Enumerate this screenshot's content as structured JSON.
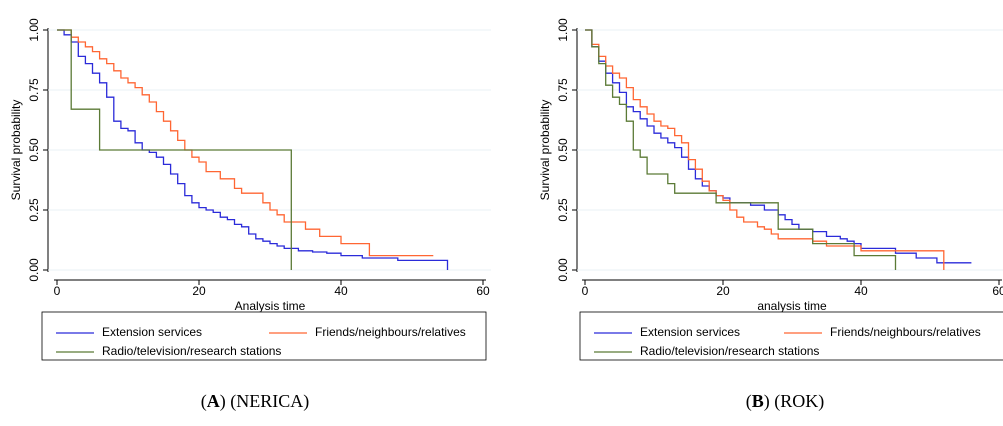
{
  "chart_data": [
    {
      "type": "line",
      "step": true,
      "grid": true,
      "xlabel": "Analysis time",
      "ylabel": "Survival probability",
      "xlim": [
        0,
        60
      ],
      "ylim": [
        0,
        1
      ],
      "xticks": [
        0,
        20,
        40,
        60
      ],
      "yticks": [
        {
          "value": 0,
          "label": "0.00"
        },
        {
          "value": 0.25,
          "label": "0.25"
        },
        {
          "value": 0.5,
          "label": "0.50"
        },
        {
          "value": 0.75,
          "label": "0.75"
        },
        {
          "value": 1,
          "label": "1.00"
        }
      ],
      "series": [
        {
          "name": "Extension services",
          "color": "#2b2bd9",
          "x": [
            0,
            1,
            2,
            3,
            4,
            5,
            6,
            7,
            8,
            9,
            10,
            11,
            12,
            13,
            14,
            15,
            16,
            17,
            18,
            19,
            20,
            21,
            22,
            23,
            24,
            25,
            26,
            27,
            28,
            29,
            30,
            31,
            32,
            34,
            36,
            38,
            40,
            43,
            48,
            55
          ],
          "values": [
            1,
            0.98,
            0.95,
            0.89,
            0.86,
            0.82,
            0.78,
            0.72,
            0.62,
            0.59,
            0.58,
            0.53,
            0.5,
            0.49,
            0.47,
            0.44,
            0.4,
            0.36,
            0.31,
            0.28,
            0.26,
            0.25,
            0.24,
            0.22,
            0.21,
            0.19,
            0.18,
            0.15,
            0.13,
            0.12,
            0.11,
            0.1,
            0.09,
            0.08,
            0.075,
            0.07,
            0.06,
            0.05,
            0.04,
            0
          ]
        },
        {
          "name": "Friends/neighbours/relatives",
          "color": "#ff6633",
          "x": [
            0,
            2,
            3,
            4,
            5,
            6,
            7,
            8,
            9,
            10,
            11,
            12,
            13,
            14,
            15,
            16,
            17,
            18,
            19,
            20,
            21,
            23,
            25,
            26,
            29,
            30,
            31,
            32,
            35,
            37,
            40,
            44,
            53
          ],
          "values": [
            1,
            0.97,
            0.95,
            0.93,
            0.91,
            0.88,
            0.86,
            0.83,
            0.8,
            0.78,
            0.76,
            0.73,
            0.7,
            0.66,
            0.62,
            0.58,
            0.54,
            0.5,
            0.47,
            0.45,
            0.41,
            0.38,
            0.34,
            0.32,
            0.28,
            0.25,
            0.23,
            0.2,
            0.17,
            0.14,
            0.11,
            0.06,
            0.06
          ]
        },
        {
          "name": "Radio/television/research stations",
          "color": "#5b7a36",
          "x": [
            0,
            2,
            6,
            33
          ],
          "values": [
            1,
            0.67,
            0.5,
            0
          ]
        }
      ],
      "caption": [
        "(",
        "A",
        ") (NERICA)"
      ]
    },
    {
      "type": "line",
      "step": true,
      "grid": true,
      "xlabel": "analysis time",
      "ylabel": "Survival probability",
      "xlim": [
        0,
        60
      ],
      "ylim": [
        0,
        1
      ],
      "xticks": [
        0,
        20,
        40,
        60
      ],
      "yticks": [
        {
          "value": 0,
          "label": "0.00"
        },
        {
          "value": 0.25,
          "label": "0.25"
        },
        {
          "value": 0.5,
          "label": "0.50"
        },
        {
          "value": 0.75,
          "label": "0.75"
        },
        {
          "value": 1,
          "label": "1.00"
        }
      ],
      "series": [
        {
          "name": "Extension services",
          "color": "#2b2bd9",
          "x": [
            0,
            1,
            2,
            3,
            4,
            5,
            6,
            7,
            8,
            9,
            10,
            11,
            12,
            13,
            14,
            15,
            16,
            17,
            18,
            19,
            20,
            21,
            24,
            26,
            28,
            29,
            30,
            31,
            33,
            35,
            37,
            38,
            39,
            40,
            45,
            48,
            51,
            56
          ],
          "values": [
            1,
            0.93,
            0.87,
            0.82,
            0.78,
            0.74,
            0.68,
            0.66,
            0.63,
            0.6,
            0.57,
            0.55,
            0.53,
            0.51,
            0.47,
            0.42,
            0.38,
            0.35,
            0.33,
            0.31,
            0.3,
            0.28,
            0.27,
            0.25,
            0.23,
            0.21,
            0.19,
            0.17,
            0.16,
            0.14,
            0.13,
            0.12,
            0.11,
            0.09,
            0.07,
            0.05,
            0.03,
            0.03
          ]
        },
        {
          "name": "Friends/neighbours/relatives",
          "color": "#ff6633",
          "x": [
            0,
            1,
            2,
            3,
            4,
            5,
            6,
            7,
            8,
            9,
            10,
            11,
            12,
            13,
            14,
            15,
            16,
            17,
            18,
            19,
            20,
            21,
            22,
            23,
            25,
            26,
            27,
            28,
            31,
            33,
            35,
            40,
            52
          ],
          "values": [
            1,
            0.94,
            0.89,
            0.85,
            0.82,
            0.8,
            0.76,
            0.71,
            0.68,
            0.65,
            0.62,
            0.6,
            0.59,
            0.56,
            0.53,
            0.46,
            0.42,
            0.37,
            0.33,
            0.31,
            0.29,
            0.25,
            0.22,
            0.2,
            0.18,
            0.17,
            0.15,
            0.13,
            0.13,
            0.12,
            0.1,
            0.08,
            0
          ]
        },
        {
          "name": "Radio/television/research stations",
          "color": "#5b7a36",
          "x": [
            0,
            1,
            2,
            3,
            4,
            5,
            6,
            7,
            8,
            9,
            12,
            13,
            18,
            19,
            28,
            33,
            39,
            45
          ],
          "values": [
            1,
            0.93,
            0.86,
            0.77,
            0.72,
            0.69,
            0.62,
            0.5,
            0.47,
            0.4,
            0.36,
            0.32,
            0.32,
            0.28,
            0.17,
            0.11,
            0.06,
            0
          ]
        }
      ],
      "caption": [
        "(",
        "B",
        ") (ROK)"
      ]
    }
  ]
}
